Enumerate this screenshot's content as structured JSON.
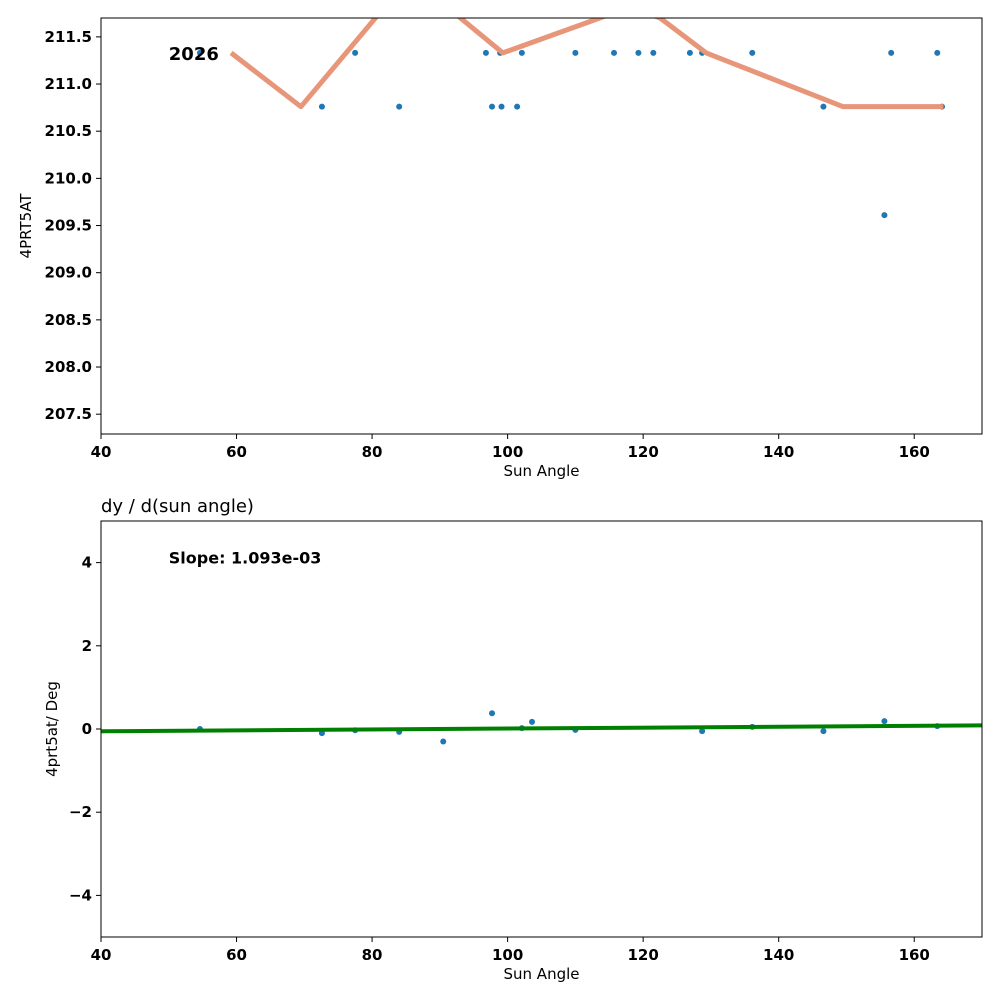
{
  "chart_data": [
    {
      "type": "scatter+line",
      "title": "",
      "annotation": "2026",
      "xlabel": "Sun Angle",
      "ylabel": "4PRT5AT",
      "xlim": [
        40,
        170
      ],
      "ylim": [
        207.29,
        211.7
      ],
      "xticks": [
        40,
        60,
        80,
        100,
        120,
        140,
        160
      ],
      "yticks": [
        207.5,
        208.0,
        208.5,
        209.0,
        209.5,
        210.0,
        210.5,
        211.0,
        211.5
      ],
      "ytick_labels": [
        "207.5",
        "208.0",
        "208.5",
        "209.0",
        "209.5",
        "210.0",
        "210.5",
        "211.0",
        "211.5"
      ],
      "points": [
        [
          54.6,
          211.33
        ],
        [
          72.6,
          210.76
        ],
        [
          77.5,
          211.33
        ],
        [
          84.0,
          210.76
        ],
        [
          96.8,
          211.33
        ],
        [
          97.7,
          210.76
        ],
        [
          98.9,
          211.33
        ],
        [
          99.1,
          210.76
        ],
        [
          101.4,
          210.76
        ],
        [
          102.1,
          211.33
        ],
        [
          110.0,
          211.33
        ],
        [
          115.7,
          211.33
        ],
        [
          119.3,
          211.33
        ],
        [
          121.5,
          211.33
        ],
        [
          126.9,
          211.33
        ],
        [
          128.7,
          211.33
        ],
        [
          136.1,
          211.33
        ],
        [
          146.6,
          210.76
        ],
        [
          155.6,
          209.61
        ],
        [
          156.6,
          211.33
        ],
        [
          163.4,
          211.33
        ],
        [
          164.1,
          210.76
        ]
      ],
      "line": [
        [
          59.2,
          211.33
        ],
        [
          69.5,
          210.76
        ],
        [
          84,
          212.0
        ],
        [
          90,
          211.88
        ],
        [
          99.3,
          211.33
        ],
        [
          113.6,
          211.7
        ],
        [
          118,
          211.82
        ],
        [
          122.5,
          211.7
        ],
        [
          129.3,
          211.33
        ],
        [
          149.5,
          210.76
        ],
        [
          164.3,
          210.76
        ]
      ],
      "colors": {
        "points": "#1f77b4",
        "line": "#e8967a"
      }
    },
    {
      "type": "scatter+line",
      "title": "dy / d(sun angle)",
      "annotation": "Slope: 1.093e-03",
      "xlabel": "Sun Angle",
      "ylabel": "4prt5at/ Deg",
      "xlim": [
        40,
        170
      ],
      "ylim": [
        -5,
        5
      ],
      "xticks": [
        40,
        60,
        80,
        100,
        120,
        140,
        160
      ],
      "yticks": [
        -4,
        -2,
        0,
        2,
        4
      ],
      "ytick_labels": [
        "−4",
        "−2",
        "0",
        "2",
        "4"
      ],
      "points": [
        [
          54.6,
          0.0
        ],
        [
          72.6,
          -0.1
        ],
        [
          77.5,
          -0.03
        ],
        [
          84.0,
          -0.07
        ],
        [
          90.5,
          -0.3
        ],
        [
          97.7,
          0.38
        ],
        [
          102.1,
          0.02
        ],
        [
          103.6,
          0.17
        ],
        [
          110.0,
          -0.02
        ],
        [
          128.7,
          -0.05
        ],
        [
          136.1,
          0.05
        ],
        [
          146.6,
          -0.05
        ],
        [
          155.6,
          0.19
        ],
        [
          163.4,
          0.07
        ]
      ],
      "line": [
        [
          40,
          -0.055
        ],
        [
          170,
          0.087
        ]
      ],
      "colors": {
        "points": "#1f77b4",
        "line": "#008000"
      }
    }
  ]
}
